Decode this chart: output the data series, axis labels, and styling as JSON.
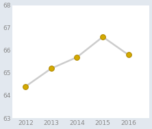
{
  "years": [
    2012,
    2013,
    2014,
    2015,
    2016
  ],
  "values": [
    64.4,
    65.2,
    65.7,
    66.6,
    65.8
  ],
  "ylim": [
    63,
    68
  ],
  "yticks": [
    63,
    64,
    65,
    66,
    67,
    68
  ],
  "line_color": "#cccccc",
  "marker_color": "#d4aa00",
  "marker_edge_color": "#b08800",
  "marker_size": 5.5,
  "line_width": 1.8,
  "background_color": "#e2e8ef",
  "plot_bg_color": "#ffffff",
  "bar_color": "#d4aa00",
  "tick_fontsize": 6.5,
  "tick_color": "#888888"
}
